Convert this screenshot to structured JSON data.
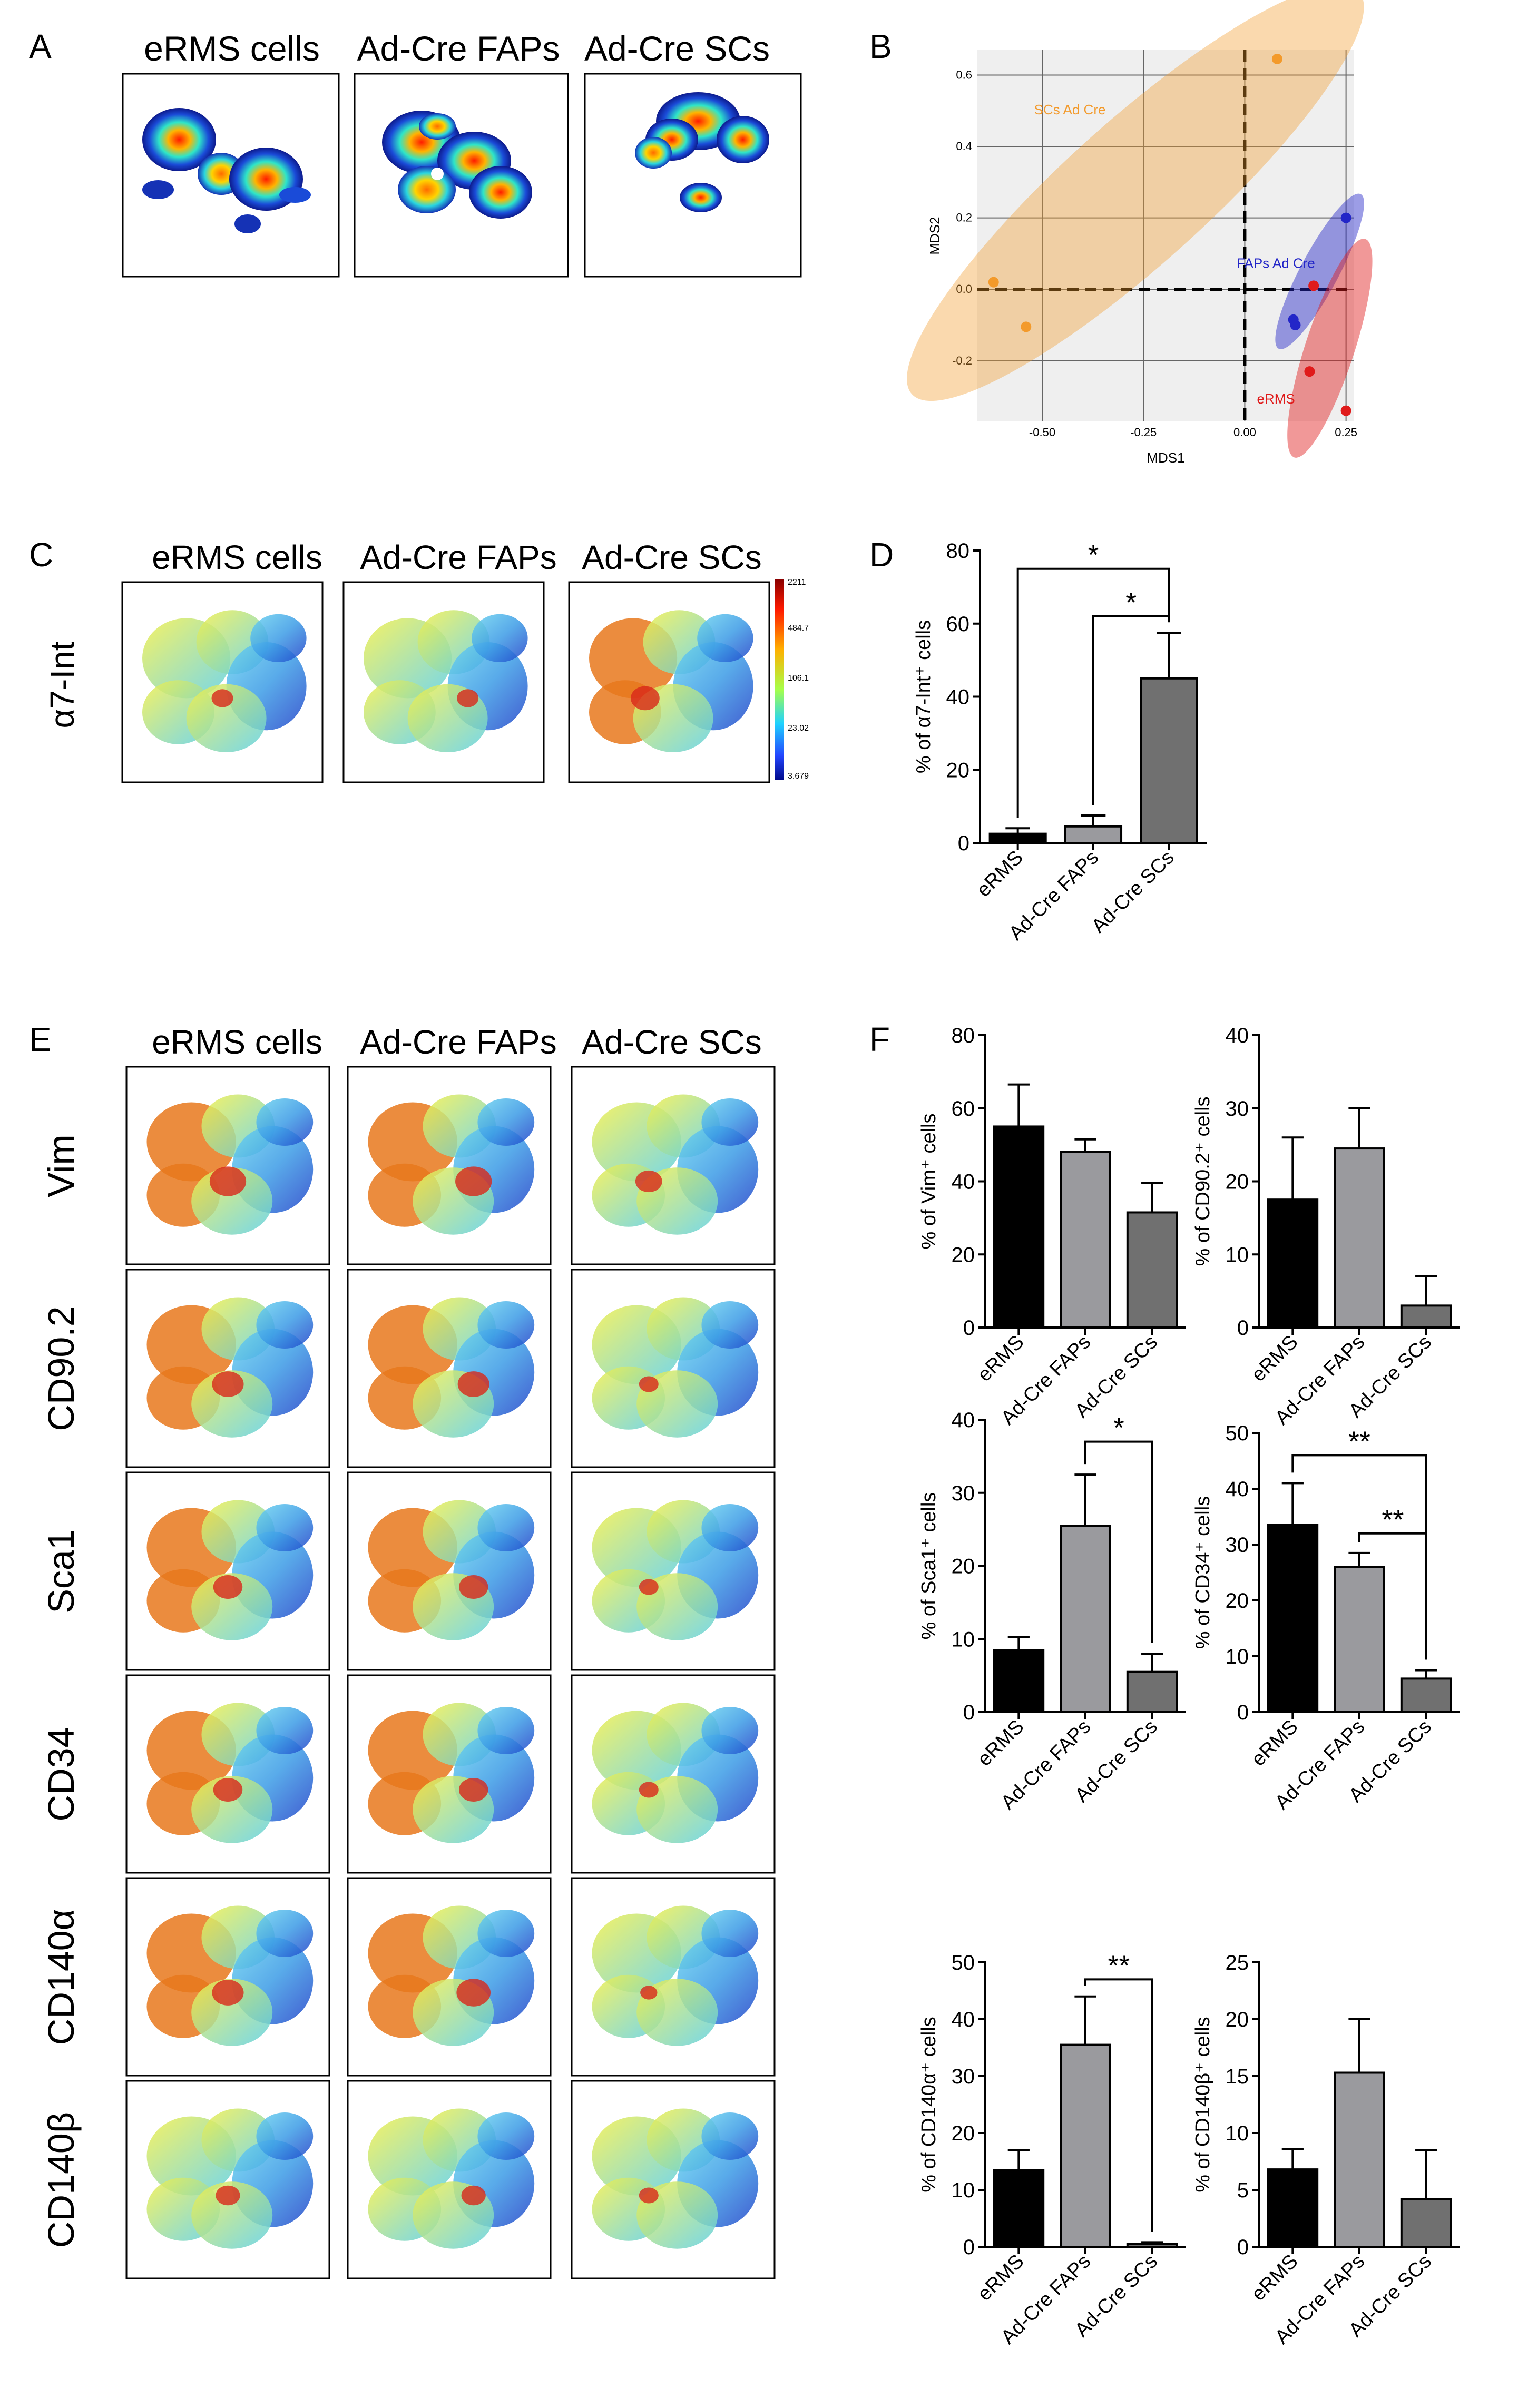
{
  "panels": {
    "A": "A",
    "B": "B",
    "C": "C",
    "D": "D",
    "E": "E",
    "F": "F"
  },
  "groups": [
    "eRMS cells",
    "Ad-Cre FAPs",
    "Ad-Cre SCs"
  ],
  "markers": [
    "Vim",
    "CD90.2",
    "Sca1",
    "CD34",
    "CD140α",
    "CD140β"
  ],
  "panelC": {
    "marker": "α7-Int",
    "colorbar_ticks": [
      "2211",
      "484.7",
      "106.1",
      "23.02",
      "3.679"
    ]
  },
  "colors": {
    "eRMS": "#e01b1b",
    "FAPs": "#2326c8",
    "SCs": "#f39a2b",
    "bar_black": "#000000",
    "bar_light": "#9a9a9e",
    "bar_dark": "#707070",
    "mds_bg": "#efefef"
  },
  "chart_data": [
    {
      "id": "B",
      "type": "scatter",
      "xlabel": "MDS1",
      "ylabel": "MDS2",
      "xlim": [
        -0.66,
        0.27
      ],
      "ylim": [
        -0.37,
        0.67
      ],
      "xticks": [
        "-0.50",
        "-0.25",
        "0.00",
        "0.25"
      ],
      "xtick_values": [
        -0.5,
        -0.25,
        0,
        0.25
      ],
      "yticks": [
        "0.6",
        "0.4",
        "0.2",
        "0.0",
        "-0.2"
      ],
      "ytick_values": [
        0.6,
        0.4,
        0.2,
        0,
        -0.2
      ],
      "series": [
        {
          "name": "SCs Ad Cre",
          "color": "#f39a2b",
          "points": [
            [
              0.08,
              0.645
            ],
            [
              -0.62,
              0.02
            ],
            [
              -0.54,
              -0.105
            ]
          ]
        },
        {
          "name": "FAPs Ad Cre",
          "color": "#2326c8",
          "points": [
            [
              0.25,
              0.2
            ],
            [
              0.12,
              -0.085
            ],
            [
              0.125,
              -0.1
            ]
          ]
        },
        {
          "name": "eRMS",
          "color": "#e01b1b",
          "points": [
            [
              0.17,
              0.01
            ],
            [
              0.16,
              -0.23
            ],
            [
              0.25,
              -0.34
            ]
          ]
        }
      ]
    },
    {
      "id": "D",
      "type": "bar",
      "ylabel": "% of α7-Int⁺ cells",
      "categories": [
        "eRMS",
        "Ad-Cre FAPs",
        "Ad-Cre SCs"
      ],
      "values": [
        2.5,
        4.5,
        45
      ],
      "errors": [
        1.5,
        3,
        12.5
      ],
      "ylim": [
        0,
        80
      ],
      "yticks": [
        "0",
        "20",
        "40",
        "60",
        "80"
      ],
      "ytick_values": [
        0,
        20,
        40,
        60,
        80
      ],
      "sig": [
        {
          "from": 0,
          "to": 2,
          "level": 75,
          "label": "*"
        },
        {
          "from": 1,
          "to": 2,
          "level": 62,
          "label": "*"
        }
      ]
    },
    {
      "id": "F-Vim",
      "type": "bar",
      "ylabel": "% of Vim⁺ cells",
      "categories": [
        "eRMS",
        "Ad-Cre FAPs",
        "Ad-Cre SCs"
      ],
      "values": [
        55,
        48,
        31.5
      ],
      "errors": [
        11.5,
        3.5,
        8
      ],
      "ylim": [
        0,
        80
      ],
      "yticks": [
        "0",
        "20",
        "40",
        "60",
        "80"
      ],
      "ytick_values": [
        0,
        20,
        40,
        60,
        80
      ],
      "sig": []
    },
    {
      "id": "F-CD90",
      "type": "bar",
      "ylabel": "% of CD90.2⁺ cells",
      "categories": [
        "eRMS",
        "Ad-Cre FAPs",
        "Ad-Cre SCs"
      ],
      "values": [
        17.5,
        24.5,
        3
      ],
      "errors": [
        8.5,
        5.5,
        4
      ],
      "ylim": [
        0,
        40
      ],
      "yticks": [
        "0",
        "10",
        "20",
        "30",
        "40"
      ],
      "ytick_values": [
        0,
        10,
        20,
        30,
        40
      ],
      "sig": []
    },
    {
      "id": "F-Sca1",
      "type": "bar",
      "ylabel": "% of Sca1⁺ cells",
      "categories": [
        "eRMS",
        "Ad-Cre FAPs",
        "Ad-Cre SCs"
      ],
      "values": [
        8.5,
        25.5,
        5.5
      ],
      "errors": [
        1.8,
        7,
        2.5
      ],
      "ylim": [
        0,
        40
      ],
      "yticks": [
        "0",
        "10",
        "20",
        "30",
        "40"
      ],
      "ytick_values": [
        0,
        10,
        20,
        30,
        40
      ],
      "sig": [
        {
          "from": 1,
          "to": 2,
          "level": 37,
          "label": "*"
        }
      ]
    },
    {
      "id": "F-CD34",
      "type": "bar",
      "ylabel": "% of CD34⁺ cells",
      "categories": [
        "eRMS",
        "Ad-Cre FAPs",
        "Ad-Cre SCs"
      ],
      "values": [
        33.5,
        26,
        6
      ],
      "errors": [
        7.5,
        2.5,
        1.5
      ],
      "ylim": [
        0,
        50
      ],
      "yticks": [
        "0",
        "10",
        "20",
        "30",
        "40",
        "50"
      ],
      "ytick_values": [
        0,
        10,
        20,
        30,
        40,
        50
      ],
      "sig": [
        {
          "from": 0,
          "to": 2,
          "level": 46,
          "label": "**"
        },
        {
          "from": 1,
          "to": 2,
          "level": 32,
          "label": "**"
        }
      ]
    },
    {
      "id": "F-CD140a",
      "type": "bar",
      "ylabel": "% of CD140α⁺ cells",
      "categories": [
        "eRMS",
        "Ad-Cre FAPs",
        "Ad-Cre SCs"
      ],
      "values": [
        13.5,
        35.5,
        0.5
      ],
      "errors": [
        3.5,
        8.5,
        0.3
      ],
      "ylim": [
        0,
        50
      ],
      "yticks": [
        "0",
        "10",
        "20",
        "30",
        "40",
        "50"
      ],
      "ytick_values": [
        0,
        10,
        20,
        30,
        40,
        50
      ],
      "sig": [
        {
          "from": 1,
          "to": 2,
          "level": 47,
          "label": "**"
        }
      ]
    },
    {
      "id": "F-CD140b",
      "type": "bar",
      "ylabel": "% of CD140β⁺ cells",
      "categories": [
        "eRMS",
        "Ad-Cre FAPs",
        "Ad-Cre SCs"
      ],
      "values": [
        6.8,
        15.3,
        4.2
      ],
      "errors": [
        1.8,
        4.7,
        4.3
      ],
      "ylim": [
        0,
        25
      ],
      "yticks": [
        "0",
        "5",
        "10",
        "15",
        "20",
        "25"
      ],
      "ytick_values": [
        0,
        5,
        10,
        15,
        20,
        25
      ],
      "sig": []
    }
  ]
}
